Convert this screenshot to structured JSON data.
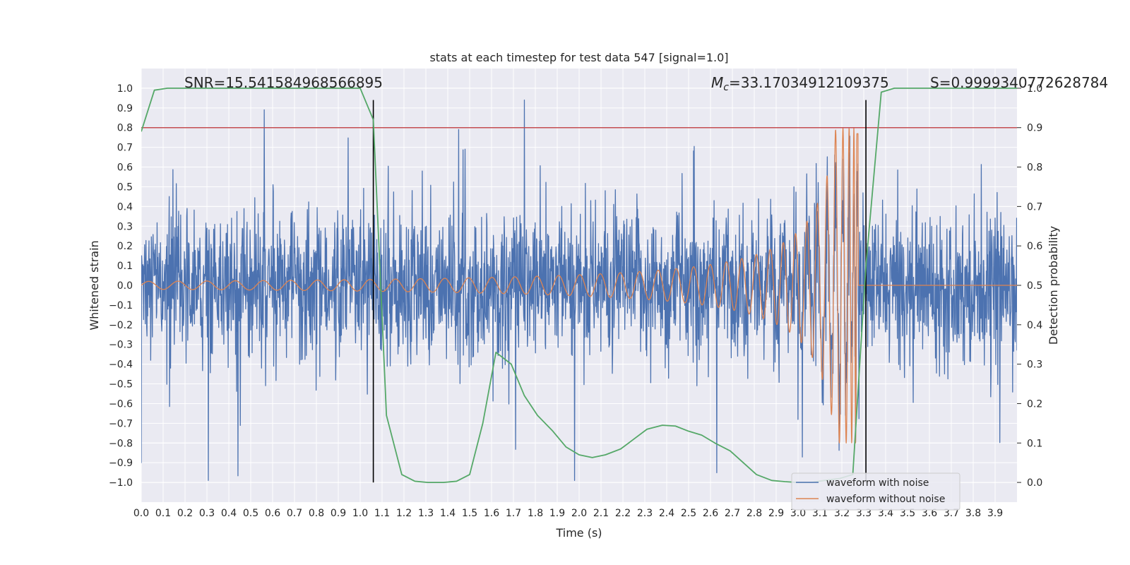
{
  "chart_data": {
    "type": "line",
    "title": "stats at each timestep for test data 547 [signal=1.0]",
    "xlabel": "Time (s)",
    "ylabel": "Whitened strain",
    "ylabel_right": "Detection probability",
    "xlim": [
      0.0,
      4.0
    ],
    "ylim": [
      -1.1,
      1.1
    ],
    "ylim_right": [
      -0.05,
      1.05
    ],
    "x_ticks": [
      "0.0",
      "0.1",
      "0.2",
      "0.3",
      "0.4",
      "0.5",
      "0.6",
      "0.7",
      "0.8",
      "0.9",
      "1.0",
      "1.1",
      "1.2",
      "1.3",
      "1.4",
      "1.5",
      "1.6",
      "1.7",
      "1.8",
      "1.9",
      "2.0",
      "2.1",
      "2.2",
      "2.3",
      "2.4",
      "2.5",
      "2.6",
      "2.7",
      "2.8",
      "2.9",
      "3.0",
      "3.1",
      "3.2",
      "3.3",
      "3.4",
      "3.5",
      "3.6",
      "3.7",
      "3.8",
      "3.9"
    ],
    "y_ticks": [
      "1.0",
      "0.9",
      "0.8",
      "0.7",
      "0.6",
      "0.5",
      "0.4",
      "0.3",
      "0.2",
      "0.1",
      "0.0",
      "−0.1",
      "−0.2",
      "−0.3",
      "−0.4",
      "−0.5",
      "−0.6",
      "−0.7",
      "−0.8",
      "−0.9",
      "−1.0"
    ],
    "y_right_ticks": [
      "1.0",
      "0.9",
      "0.8",
      "0.7",
      "0.6",
      "0.5",
      "0.4",
      "0.3",
      "0.2",
      "0.1",
      "0.0"
    ],
    "grid": true,
    "legend_position": "lower-right",
    "annotations": {
      "snr": "SNR=15.541584968566895",
      "mc_symbol": "M",
      "mc_sub": "c",
      "mc_value": "=33.17034912109375",
      "s": "S=0.9999340772628784"
    },
    "series": [
      {
        "name": "waveform with noise",
        "color": "#4c72b0",
        "axis": "left",
        "noise_sigma": 0.18,
        "peak_value": 0.94,
        "peak_x": 1.75
      },
      {
        "name": "waveform without noise",
        "color": "#dd8452",
        "axis": "left",
        "chirp_start_amplitude": 0.02,
        "chirp_peak_amplitude": 0.8,
        "merger_time": 3.27,
        "post_merger_value": 0.0
      },
      {
        "color": "#55a868",
        "axis": "right",
        "x": [
          0.0,
          0.06,
          0.12,
          0.19,
          0.25,
          0.31,
          0.38,
          0.44,
          0.5,
          0.56,
          0.62,
          0.69,
          0.75,
          0.81,
          0.88,
          0.94,
          1.0,
          1.06,
          1.12,
          1.19,
          1.25,
          1.31,
          1.38,
          1.44,
          1.5,
          1.56,
          1.62,
          1.69,
          1.75,
          1.81,
          1.88,
          1.94,
          2.0,
          2.06,
          2.12,
          2.19,
          2.25,
          2.31,
          2.38,
          2.44,
          2.5,
          2.56,
          2.62,
          2.69,
          2.75,
          2.81,
          2.88,
          2.94,
          3.0,
          3.06,
          3.12,
          3.19,
          3.25,
          3.31,
          3.38,
          3.44,
          3.5,
          3.56,
          3.62,
          3.69,
          3.75,
          3.81,
          3.88,
          3.94,
          4.0
        ],
        "values": [
          0.89,
          0.995,
          1.0,
          1.0,
          1.0,
          1.0,
          1.0,
          1.0,
          1.0,
          1.0,
          1.0,
          1.0,
          1.0,
          1.0,
          1.0,
          1.0,
          1.0,
          0.92,
          0.17,
          0.02,
          0.003,
          0.0,
          0.0,
          0.003,
          0.02,
          0.15,
          0.33,
          0.3,
          0.22,
          0.17,
          0.13,
          0.09,
          0.07,
          0.063,
          0.07,
          0.085,
          0.11,
          0.135,
          0.145,
          0.143,
          0.13,
          0.12,
          0.1,
          0.08,
          0.05,
          0.02,
          0.005,
          0.002,
          0.0,
          0.0,
          0.005,
          0.01,
          0.02,
          0.55,
          0.99,
          1.0,
          1.0,
          1.0,
          1.0,
          1.0,
          1.0,
          1.0,
          1.0,
          1.0,
          1.0
        ]
      }
    ],
    "threshold": {
      "value": 0.9,
      "axis": "right",
      "color": "#c44e52"
    },
    "vlines": [
      {
        "x": 1.06,
        "ymin": -1.0,
        "ymax": 0.94,
        "color": "#000000"
      },
      {
        "x": 3.31,
        "ymin": -1.0,
        "ymax": 0.94,
        "color": "#000000"
      }
    ]
  }
}
